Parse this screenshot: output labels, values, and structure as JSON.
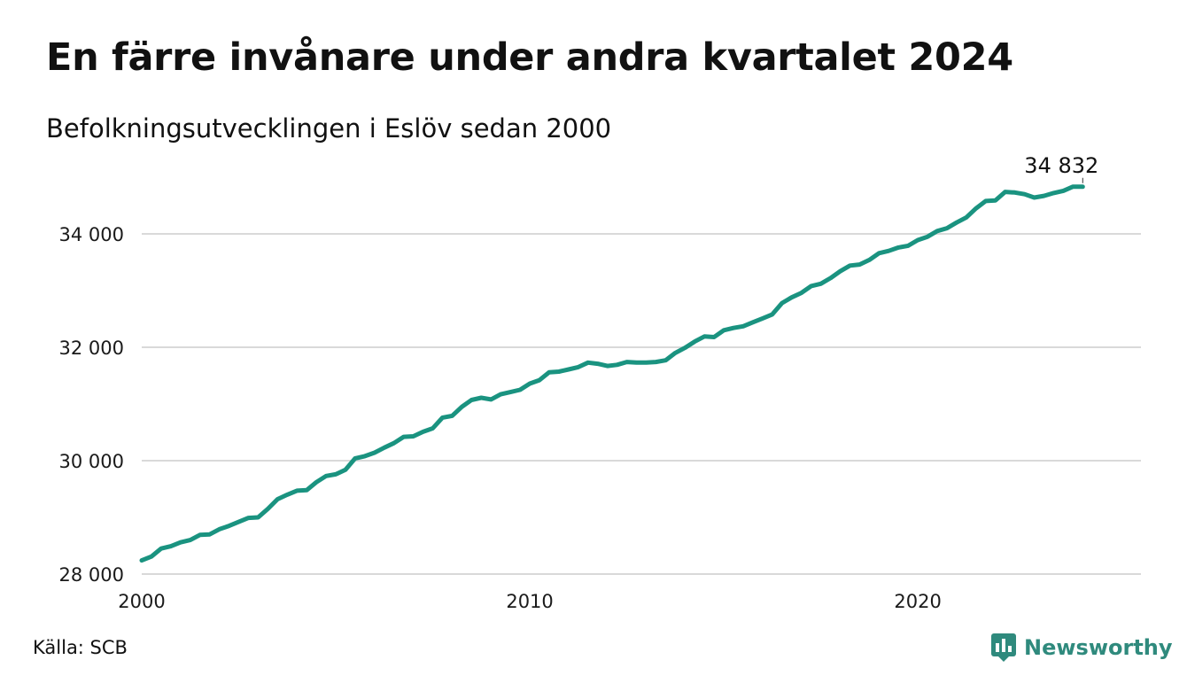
{
  "header": {
    "title": "En färre invånare under andra kvartalet 2024",
    "subtitle": "Befolkningsutvecklingen i Eslöv sedan 2000"
  },
  "footer": {
    "source": "Källa: SCB",
    "brand_name": "Newsworthy",
    "brand_icon": "newsworthy-logo-icon",
    "brand_color": "#2f8a7d"
  },
  "colors": {
    "line": "#1a9380",
    "grid": "#d9d9d9"
  },
  "chart_data": {
    "type": "line",
    "title": "En färre invånare under andra kvartalet 2024",
    "subtitle": "Befolkningsutvecklingen i Eslöv sedan 2000",
    "xlabel": "",
    "ylabel": "",
    "x_ticks": [
      2000,
      2010,
      2020
    ],
    "x_tick_labels": [
      "2000",
      "2010",
      "2020"
    ],
    "y_ticks": [
      28000,
      30000,
      32000,
      34000
    ],
    "y_tick_labels": [
      "28 000",
      "30 000",
      "32 000",
      "34 000"
    ],
    "xlim": [
      2000,
      2025.75
    ],
    "ylim": [
      28000,
      35000
    ],
    "grid": true,
    "end_label": "34 832",
    "series": [
      {
        "x": [
          2000.0,
          2000.25,
          2000.5,
          2000.75,
          2001.0,
          2001.25,
          2001.5,
          2001.75,
          2002.0,
          2002.25,
          2002.5,
          2002.75,
          2003.0,
          2003.25,
          2003.5,
          2003.75,
          2004.0,
          2004.25,
          2004.5,
          2004.75,
          2005.0,
          2005.25,
          2005.5,
          2005.75,
          2006.0,
          2006.25,
          2006.5,
          2006.75,
          2007.0,
          2007.25,
          2007.5,
          2007.75,
          2008.0,
          2008.25,
          2008.5,
          2008.75,
          2009.0,
          2009.25,
          2009.5,
          2009.75,
          2010.0,
          2010.25,
          2010.5,
          2010.75,
          2011.0,
          2011.25,
          2011.5,
          2011.75,
          2012.0,
          2012.25,
          2012.5,
          2012.75,
          2013.0,
          2013.25,
          2013.5,
          2013.75,
          2014.0,
          2014.25,
          2014.5,
          2014.75,
          2015.0,
          2015.25,
          2015.5,
          2015.75,
          2016.0,
          2016.25,
          2016.5,
          2016.75,
          2017.0,
          2017.25,
          2017.5,
          2017.75,
          2018.0,
          2018.25,
          2018.5,
          2018.75,
          2019.0,
          2019.25,
          2019.5,
          2019.75,
          2020.0,
          2020.25,
          2020.5,
          2020.75,
          2021.0,
          2021.25,
          2021.5,
          2021.75,
          2022.0,
          2022.25,
          2022.5,
          2022.75,
          2023.0,
          2023.25,
          2023.5,
          2023.75,
          2024.0,
          2024.25
        ],
        "y": [
          28240,
          28310,
          28450,
          28490,
          28560,
          28600,
          28690,
          28700,
          28790,
          28850,
          28920,
          28990,
          29000,
          29150,
          29320,
          29400,
          29470,
          29480,
          29620,
          29730,
          29760,
          29840,
          30040,
          30080,
          30140,
          30230,
          30310,
          30420,
          30430,
          30510,
          30570,
          30760,
          30790,
          30950,
          31070,
          31110,
          31080,
          31170,
          31210,
          31250,
          31360,
          31420,
          31560,
          31570,
          31610,
          31650,
          31730,
          31710,
          31670,
          31690,
          31740,
          31730,
          31730,
          31740,
          31770,
          31900,
          31990,
          32100,
          32190,
          32180,
          32300,
          32340,
          32370,
          32440,
          32510,
          32580,
          32780,
          32880,
          32960,
          33080,
          33120,
          33220,
          33340,
          33440,
          33460,
          33540,
          33660,
          33700,
          33760,
          33790,
          33890,
          33950,
          34050,
          34100,
          34200,
          34290,
          34450,
          34580,
          34590,
          34740,
          34730,
          34700,
          34640,
          34670,
          34720,
          34760,
          34833,
          34832
        ]
      }
    ]
  }
}
